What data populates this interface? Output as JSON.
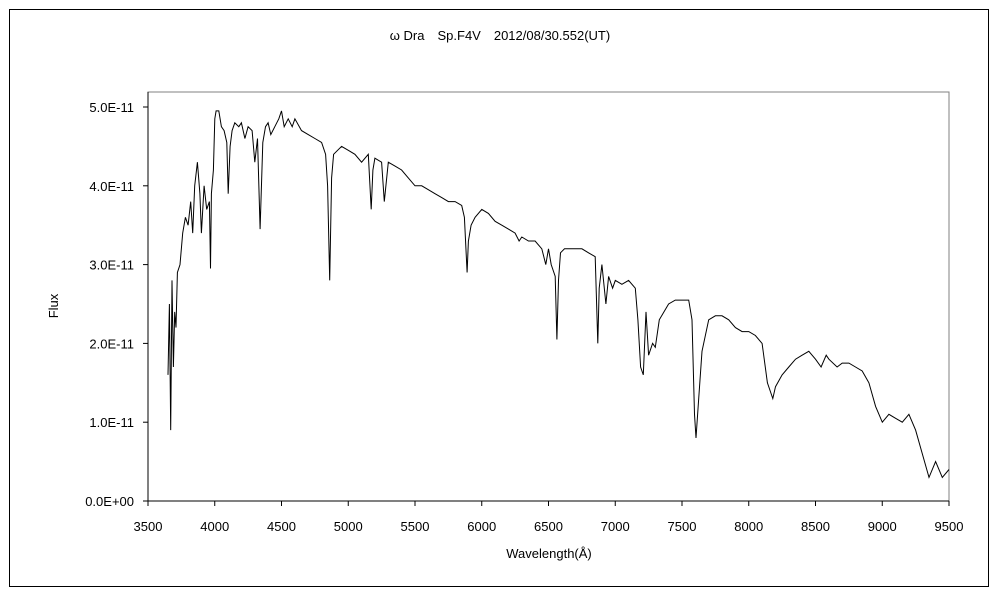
{
  "chart_data": {
    "type": "line",
    "title": "ω Dra　Sp.F4V　2012/08/30.552(UT)",
    "xlabel": "Wavelength(Å)",
    "ylabel": "Flux",
    "xlim": [
      3500,
      9500
    ],
    "ylim": [
      0,
      5e-11
    ],
    "xticks": [
      3500,
      4000,
      4500,
      5000,
      5500,
      6000,
      6500,
      7000,
      7500,
      8000,
      8500,
      9000,
      9500
    ],
    "yticks": [
      0.0,
      1e-11,
      2e-11,
      3e-11,
      4e-11,
      5e-11
    ],
    "xtick_labels": [
      "3500",
      "4000",
      "4500",
      "5000",
      "5500",
      "6000",
      "6500",
      "7000",
      "7500",
      "8000",
      "8500",
      "9000",
      "9500"
    ],
    "ytick_labels": [
      "0.0E+00",
      "1.0E-11",
      "2.0E-11",
      "3.0E-11",
      "4.0E-11",
      "5.0E-11"
    ],
    "grid": false,
    "legend": "none",
    "line_color": "#000000",
    "series": [
      {
        "values": [
          [
            3650,
            1.6e-11
          ],
          [
            3660,
            2.5e-11
          ],
          [
            3670,
            9e-12
          ],
          [
            3680,
            2.8e-11
          ],
          [
            3690,
            1.7e-11
          ],
          [
            3700,
            2.4e-11
          ],
          [
            3710,
            2.2e-11
          ],
          [
            3720,
            2.9e-11
          ],
          [
            3740,
            3e-11
          ],
          [
            3760,
            3.4e-11
          ],
          [
            3780,
            3.6e-11
          ],
          [
            3800,
            3.5e-11
          ],
          [
            3820,
            3.8e-11
          ],
          [
            3835,
            3.4e-11
          ],
          [
            3850,
            4e-11
          ],
          [
            3870,
            4.3e-11
          ],
          [
            3889,
            3.9e-11
          ],
          [
            3900,
            3.4e-11
          ],
          [
            3920,
            4e-11
          ],
          [
            3940,
            3.7e-11
          ],
          [
            3960,
            3.8e-11
          ],
          [
            3968,
            2.95e-11
          ],
          [
            3975,
            3.9e-11
          ],
          [
            3990,
            4.2e-11
          ],
          [
            4000,
            4.85e-11
          ],
          [
            4010,
            4.95e-11
          ],
          [
            4030,
            4.95e-11
          ],
          [
            4050,
            4.75e-11
          ],
          [
            4070,
            4.7e-11
          ],
          [
            4090,
            4.55e-11
          ],
          [
            4101,
            3.9e-11
          ],
          [
            4115,
            4.5e-11
          ],
          [
            4130,
            4.7e-11
          ],
          [
            4150,
            4.8e-11
          ],
          [
            4180,
            4.75e-11
          ],
          [
            4200,
            4.8e-11
          ],
          [
            4226,
            4.6e-11
          ],
          [
            4250,
            4.75e-11
          ],
          [
            4280,
            4.7e-11
          ],
          [
            4300,
            4.3e-11
          ],
          [
            4320,
            4.6e-11
          ],
          [
            4340,
            3.45e-11
          ],
          [
            4360,
            4.55e-11
          ],
          [
            4380,
            4.75e-11
          ],
          [
            4400,
            4.8e-11
          ],
          [
            4420,
            4.65e-11
          ],
          [
            4450,
            4.75e-11
          ],
          [
            4480,
            4.85e-11
          ],
          [
            4500,
            4.95e-11
          ],
          [
            4520,
            4.75e-11
          ],
          [
            4550,
            4.85e-11
          ],
          [
            4580,
            4.75e-11
          ],
          [
            4600,
            4.85e-11
          ],
          [
            4650,
            4.7e-11
          ],
          [
            4700,
            4.65e-11
          ],
          [
            4750,
            4.6e-11
          ],
          [
            4800,
            4.55e-11
          ],
          [
            4830,
            4.4e-11
          ],
          [
            4845,
            4e-11
          ],
          [
            4861,
            2.8e-11
          ],
          [
            4875,
            4.1e-11
          ],
          [
            4890,
            4.4e-11
          ],
          [
            4920,
            4.45e-11
          ],
          [
            4950,
            4.5e-11
          ],
          [
            5000,
            4.45e-11
          ],
          [
            5050,
            4.4e-11
          ],
          [
            5100,
            4.3e-11
          ],
          [
            5150,
            4.4e-11
          ],
          [
            5172,
            3.7e-11
          ],
          [
            5185,
            4.2e-11
          ],
          [
            5200,
            4.35e-11
          ],
          [
            5250,
            4.3e-11
          ],
          [
            5270,
            3.8e-11
          ],
          [
            5300,
            4.3e-11
          ],
          [
            5350,
            4.25e-11
          ],
          [
            5400,
            4.2e-11
          ],
          [
            5450,
            4.1e-11
          ],
          [
            5500,
            4e-11
          ],
          [
            5550,
            4e-11
          ],
          [
            5600,
            3.95e-11
          ],
          [
            5650,
            3.9e-11
          ],
          [
            5700,
            3.85e-11
          ],
          [
            5750,
            3.8e-11
          ],
          [
            5800,
            3.8e-11
          ],
          [
            5850,
            3.75e-11
          ],
          [
            5870,
            3.6e-11
          ],
          [
            5890,
            2.9e-11
          ],
          [
            5900,
            3.3e-11
          ],
          [
            5920,
            3.5e-11
          ],
          [
            5950,
            3.6e-11
          ],
          [
            6000,
            3.7e-11
          ],
          [
            6050,
            3.65e-11
          ],
          [
            6100,
            3.55e-11
          ],
          [
            6150,
            3.5e-11
          ],
          [
            6200,
            3.45e-11
          ],
          [
            6250,
            3.4e-11
          ],
          [
            6280,
            3.3e-11
          ],
          [
            6300,
            3.35e-11
          ],
          [
            6350,
            3.3e-11
          ],
          [
            6400,
            3.3e-11
          ],
          [
            6450,
            3.2e-11
          ],
          [
            6480,
            3e-11
          ],
          [
            6500,
            3.2e-11
          ],
          [
            6520,
            3e-11
          ],
          [
            6550,
            2.85e-11
          ],
          [
            6563,
            2.05e-11
          ],
          [
            6575,
            2.8e-11
          ],
          [
            6590,
            3.15e-11
          ],
          [
            6620,
            3.2e-11
          ],
          [
            6650,
            3.2e-11
          ],
          [
            6700,
            3.2e-11
          ],
          [
            6750,
            3.2e-11
          ],
          [
            6800,
            3.15e-11
          ],
          [
            6850,
            3.1e-11
          ],
          [
            6869,
            2e-11
          ],
          [
            6880,
            2.7e-11
          ],
          [
            6900,
            3e-11
          ],
          [
            6930,
            2.5e-11
          ],
          [
            6950,
            2.85e-11
          ],
          [
            6980,
            2.7e-11
          ],
          [
            7000,
            2.8e-11
          ],
          [
            7050,
            2.75e-11
          ],
          [
            7100,
            2.8e-11
          ],
          [
            7150,
            2.7e-11
          ],
          [
            7170,
            2.3e-11
          ],
          [
            7190,
            1.7e-11
          ],
          [
            7210,
            1.6e-11
          ],
          [
            7230,
            2.4e-11
          ],
          [
            7250,
            1.85e-11
          ],
          [
            7280,
            2e-11
          ],
          [
            7300,
            1.95e-11
          ],
          [
            7330,
            2.3e-11
          ],
          [
            7400,
            2.5e-11
          ],
          [
            7450,
            2.55e-11
          ],
          [
            7500,
            2.55e-11
          ],
          [
            7550,
            2.55e-11
          ],
          [
            7575,
            2.3e-11
          ],
          [
            7594,
            1.1e-11
          ],
          [
            7605,
            8e-12
          ],
          [
            7625,
            1.3e-11
          ],
          [
            7650,
            1.9e-11
          ],
          [
            7700,
            2.3e-11
          ],
          [
            7750,
            2.35e-11
          ],
          [
            7800,
            2.35e-11
          ],
          [
            7850,
            2.3e-11
          ],
          [
            7900,
            2.2e-11
          ],
          [
            7950,
            2.15e-11
          ],
          [
            8000,
            2.15e-11
          ],
          [
            8050,
            2.1e-11
          ],
          [
            8100,
            2e-11
          ],
          [
            8140,
            1.5e-11
          ],
          [
            8180,
            1.3e-11
          ],
          [
            8200,
            1.45e-11
          ],
          [
            8250,
            1.6e-11
          ],
          [
            8300,
            1.7e-11
          ],
          [
            8350,
            1.8e-11
          ],
          [
            8400,
            1.85e-11
          ],
          [
            8450,
            1.9e-11
          ],
          [
            8500,
            1.8e-11
          ],
          [
            8542,
            1.7e-11
          ],
          [
            8580,
            1.85e-11
          ],
          [
            8600,
            1.8e-11
          ],
          [
            8662,
            1.7e-11
          ],
          [
            8700,
            1.75e-11
          ],
          [
            8750,
            1.75e-11
          ],
          [
            8800,
            1.7e-11
          ],
          [
            8850,
            1.65e-11
          ],
          [
            8900,
            1.5e-11
          ],
          [
            8950,
            1.2e-11
          ],
          [
            9000,
            1e-11
          ],
          [
            9050,
            1.1e-11
          ],
          [
            9100,
            1.05e-11
          ],
          [
            9150,
            1e-11
          ],
          [
            9200,
            1.1e-11
          ],
          [
            9250,
            9e-12
          ],
          [
            9300,
            6e-12
          ],
          [
            9350,
            3e-12
          ],
          [
            9400,
            5e-12
          ],
          [
            9450,
            3e-12
          ],
          [
            9500,
            4e-12
          ]
        ]
      }
    ]
  }
}
